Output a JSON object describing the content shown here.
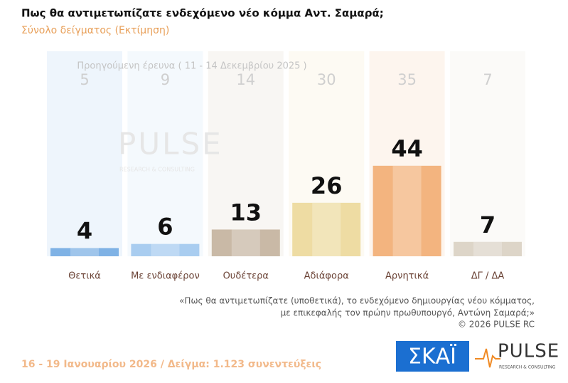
{
  "chart_data": {
    "type": "bar",
    "title": "Πως θα αντιμετωπίζατε ενδεχόμενο νέο κόμμα Αντ. Σαμαρά;",
    "subtitle": "Σύνολο δείγματος  (Εκτίμηση)",
    "categories": [
      "Θετικά",
      "Με ενδιαφέρον",
      "Ουδέτερα",
      "Αδιάφορα",
      "Αρνητικά",
      "ΔΓ / ΔΑ"
    ],
    "values": [
      4,
      6,
      13,
      26,
      44,
      7
    ],
    "colors": [
      "#7fb2e5",
      "#a9cdf0",
      "#c9b9a6",
      "#eedca3",
      "#f3b47f",
      "#ddd5c8"
    ],
    "previous": {
      "label": "Προηγούμενη έρευνα ( 11 - 14 Δεκεμβρίου 2025 )",
      "values": [
        5,
        9,
        14,
        30,
        35,
        7
      ]
    },
    "footnote": [
      "«Πως θα αντιμετωπίζατε (υποθετικά), το ενδεχόμενο δημιουργίας νέου κόμματος,",
      "με επικεφαλής τον πρώην πρωθυπουργό, Αντώνη Σαμαρά;»"
    ],
    "copyright": "©  2026  PULSE RC",
    "footer": "16 - 19 Ιανουαρίου 2026  /  Δείγμα:  1.123 συνεντεύξεις",
    "logos": {
      "skai": "ΣΚΑΪ",
      "pulse": "PULSE",
      "pulse_sub": "RESEARCH & CONSULTING"
    }
  }
}
